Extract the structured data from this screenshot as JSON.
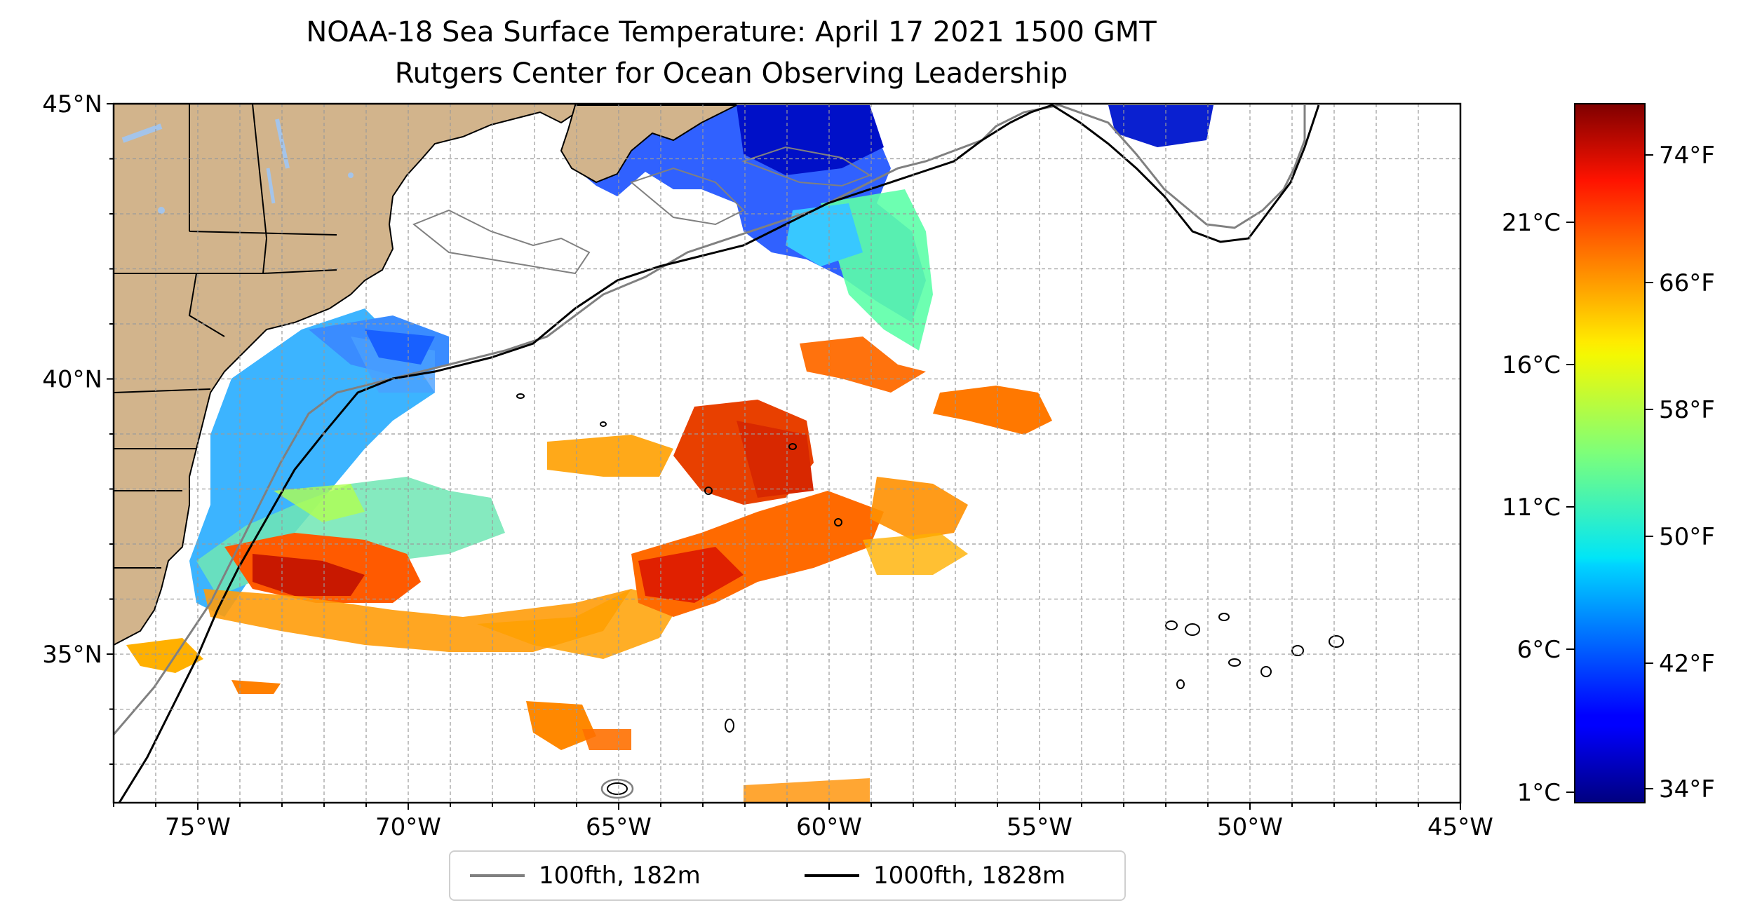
{
  "title": {
    "line1": "NOAA-18 Sea Surface Temperature: April 17 2021 1500 GMT",
    "line2": "Rutgers Center for Ocean Observing Leadership"
  },
  "map": {
    "lon_range": [
      -77,
      -45
    ],
    "lat_range": [
      32.3,
      45
    ],
    "lon_ticks": [
      {
        "lon": -75,
        "label": "75°W"
      },
      {
        "lon": -70,
        "label": "70°W"
      },
      {
        "lon": -65,
        "label": "65°W"
      },
      {
        "lon": -60,
        "label": "60°W"
      },
      {
        "lon": -55,
        "label": "55°W"
      },
      {
        "lon": -50,
        "label": "50°W"
      },
      {
        "lon": -45,
        "label": "45°W"
      }
    ],
    "lat_ticks": [
      {
        "lat": 45,
        "label": "45°N"
      },
      {
        "lat": 40,
        "label": "40°N"
      },
      {
        "lat": 35,
        "label": "35°N"
      }
    ],
    "land_color": "#d2b48c",
    "grid": true
  },
  "colorbar": {
    "colormap": "jet",
    "celsius_ticks": [
      "21°C",
      "16°C",
      "11°C",
      "6°C",
      "1°C"
    ],
    "fahrenheit_ticks": [
      "74°F",
      "66°F",
      "58°F",
      "50°F",
      "42°F",
      "34°F"
    ]
  },
  "legend": {
    "items": [
      {
        "label": "100fth, 182m",
        "color": "#808080"
      },
      {
        "label": "1000fth, 1828m",
        "color": "#000000"
      }
    ]
  }
}
